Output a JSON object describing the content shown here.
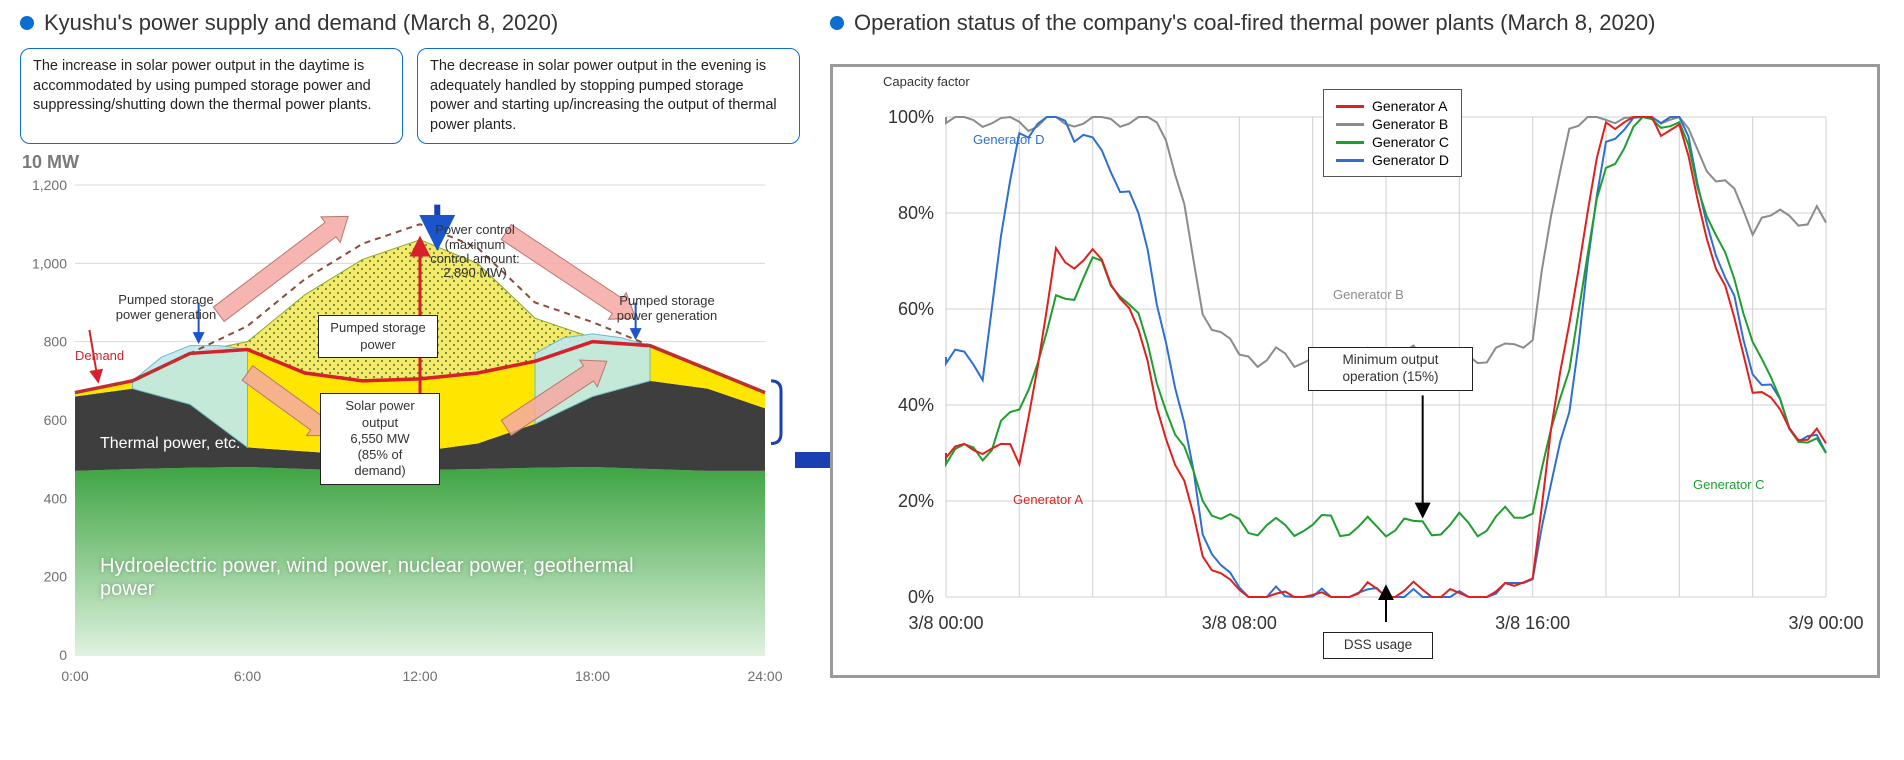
{
  "left": {
    "title": "Kyushu's power supply and demand (March 8, 2020)",
    "callout1": "The increase in solar power output in the daytime is accommodated by using pumped storage power and suppressing/shutting down the thermal power plants.",
    "callout2": "The decrease in solar power output in the evening is adequately handled by stopping pumped storage power and starting up/increasing the output of thermal power plants.",
    "y_unit": "10 MW",
    "x_ticks": [
      "0:00",
      "6:00",
      "12:00",
      "18:00",
      "24:00"
    ],
    "y_ticks": [
      0,
      200,
      400,
      600,
      800,
      1000,
      1200
    ],
    "ylim": [
      0,
      1200
    ],
    "layers": {
      "base_label": "Hydroelectric power, wind power, nuclear power, geothermal power",
      "thermal_label": "Thermal power, etc.",
      "demand_label": "Demand",
      "pumped_gen_label": "Pumped storage power generation",
      "pumped_power_box": "Pumped storage power",
      "solar_box_l1": "Solar power output",
      "solar_box_l2": "6,550 MW",
      "solar_box_l3": "(85% of demand)",
      "power_control_l1": "Power control",
      "power_control_l2": "(maximum",
      "power_control_l3": "control amount:",
      "power_control_l4": "2,890 MW)"
    },
    "colors": {
      "base_fill_top": "#3fa443",
      "base_fill_bottom": "#dff2df",
      "thermal_fill": "#3e3e3e",
      "solar_fill": "#ffe600",
      "solar_dot_fill": "#f4e96a",
      "pumped_gen_fill": "#bfe9ef",
      "demand_stroke": "#d8202a",
      "arrow_pink": "#f4a8a2",
      "arrow_blue": "#1840b3",
      "grid": "#d8d8d8",
      "axis_text": "#6f6f6f"
    },
    "series": {
      "x": [
        0,
        2,
        4,
        6,
        8,
        10,
        12,
        14,
        16,
        18,
        20,
        22,
        24
      ],
      "base": [
        470,
        475,
        478,
        480,
        475,
        470,
        472,
        475,
        478,
        480,
        475,
        470,
        470
      ],
      "thermal": [
        660,
        680,
        640,
        530,
        520,
        510,
        520,
        540,
        590,
        660,
        700,
        680,
        630
      ],
      "demand": [
        670,
        700,
        770,
        780,
        720,
        700,
        705,
        720,
        750,
        800,
        790,
        730,
        670
      ],
      "solar": [
        670,
        700,
        770,
        800,
        920,
        1010,
        1060,
        1000,
        860,
        810,
        790,
        730,
        670
      ],
      "pumped_gen_left": {
        "x": [
          2,
          3,
          4,
          5,
          6
        ],
        "y": [
          700,
          760,
          790,
          790,
          780
        ]
      },
      "pumped_gen_right": {
        "x": [
          16,
          17,
          18,
          19,
          20
        ],
        "y": [
          770,
          810,
          820,
          810,
          790
        ]
      }
    }
  },
  "right": {
    "title": "Operation status of the company's coal-fired thermal power plants (March 8, 2020)",
    "y_label": "Capacity factor",
    "y_ticks_pct": [
      0,
      20,
      40,
      60,
      80,
      100
    ],
    "x_ticks": [
      "3/8 00:00",
      "3/8 08:00",
      "3/8 16:00",
      "3/9 00:00"
    ],
    "legend": [
      {
        "label": "Generator A",
        "color": "#e11f1f"
      },
      {
        "label": "Generator B",
        "color": "#8b8b8b"
      },
      {
        "label": "Generator C",
        "color": "#1e9e2f"
      },
      {
        "label": "Generator D",
        "color": "#2f6fd0"
      }
    ],
    "annotations": {
      "gen_a": "Generator A",
      "gen_b": "Generator B",
      "gen_c": "Generator C",
      "gen_d": "Generator D",
      "min_out_l1": "Minimum output",
      "min_out_l2": "operation (15%)",
      "dss": "DSS usage"
    },
    "colors": {
      "grid": "#d0d0d0",
      "frame": "#9a9a9a",
      "text": "#333333"
    },
    "series": {
      "x": [
        0,
        1,
        2,
        3,
        4,
        5,
        6,
        7,
        8,
        9,
        10,
        11,
        12,
        13,
        14,
        15,
        16,
        17,
        18,
        19,
        20,
        21,
        22,
        23,
        24
      ],
      "A": [
        30,
        32,
        28,
        70,
        72,
        60,
        35,
        10,
        0,
        0,
        0,
        0,
        0,
        0,
        0,
        0,
        5,
        60,
        100,
        100,
        98,
        70,
        45,
        35,
        32
      ],
      "B": [
        100,
        100,
        99,
        100,
        100,
        100,
        98,
        60,
        50,
        50,
        50,
        50,
        50,
        50,
        50,
        50,
        55,
        100,
        100,
        100,
        100,
        88,
        78,
        80,
        78
      ],
      "C": [
        30,
        30,
        40,
        60,
        70,
        62,
        40,
        20,
        15,
        15,
        15,
        15,
        15,
        15,
        15,
        15,
        18,
        50,
        90,
        100,
        98,
        75,
        55,
        35,
        30
      ],
      "D": [
        50,
        48,
        98,
        100,
        95,
        85,
        55,
        15,
        0,
        0,
        0,
        0,
        0,
        0,
        0,
        0,
        5,
        40,
        95,
        100,
        100,
        72,
        48,
        36,
        30
      ]
    },
    "line_width": 2
  },
  "connector_color": "#1840b3"
}
